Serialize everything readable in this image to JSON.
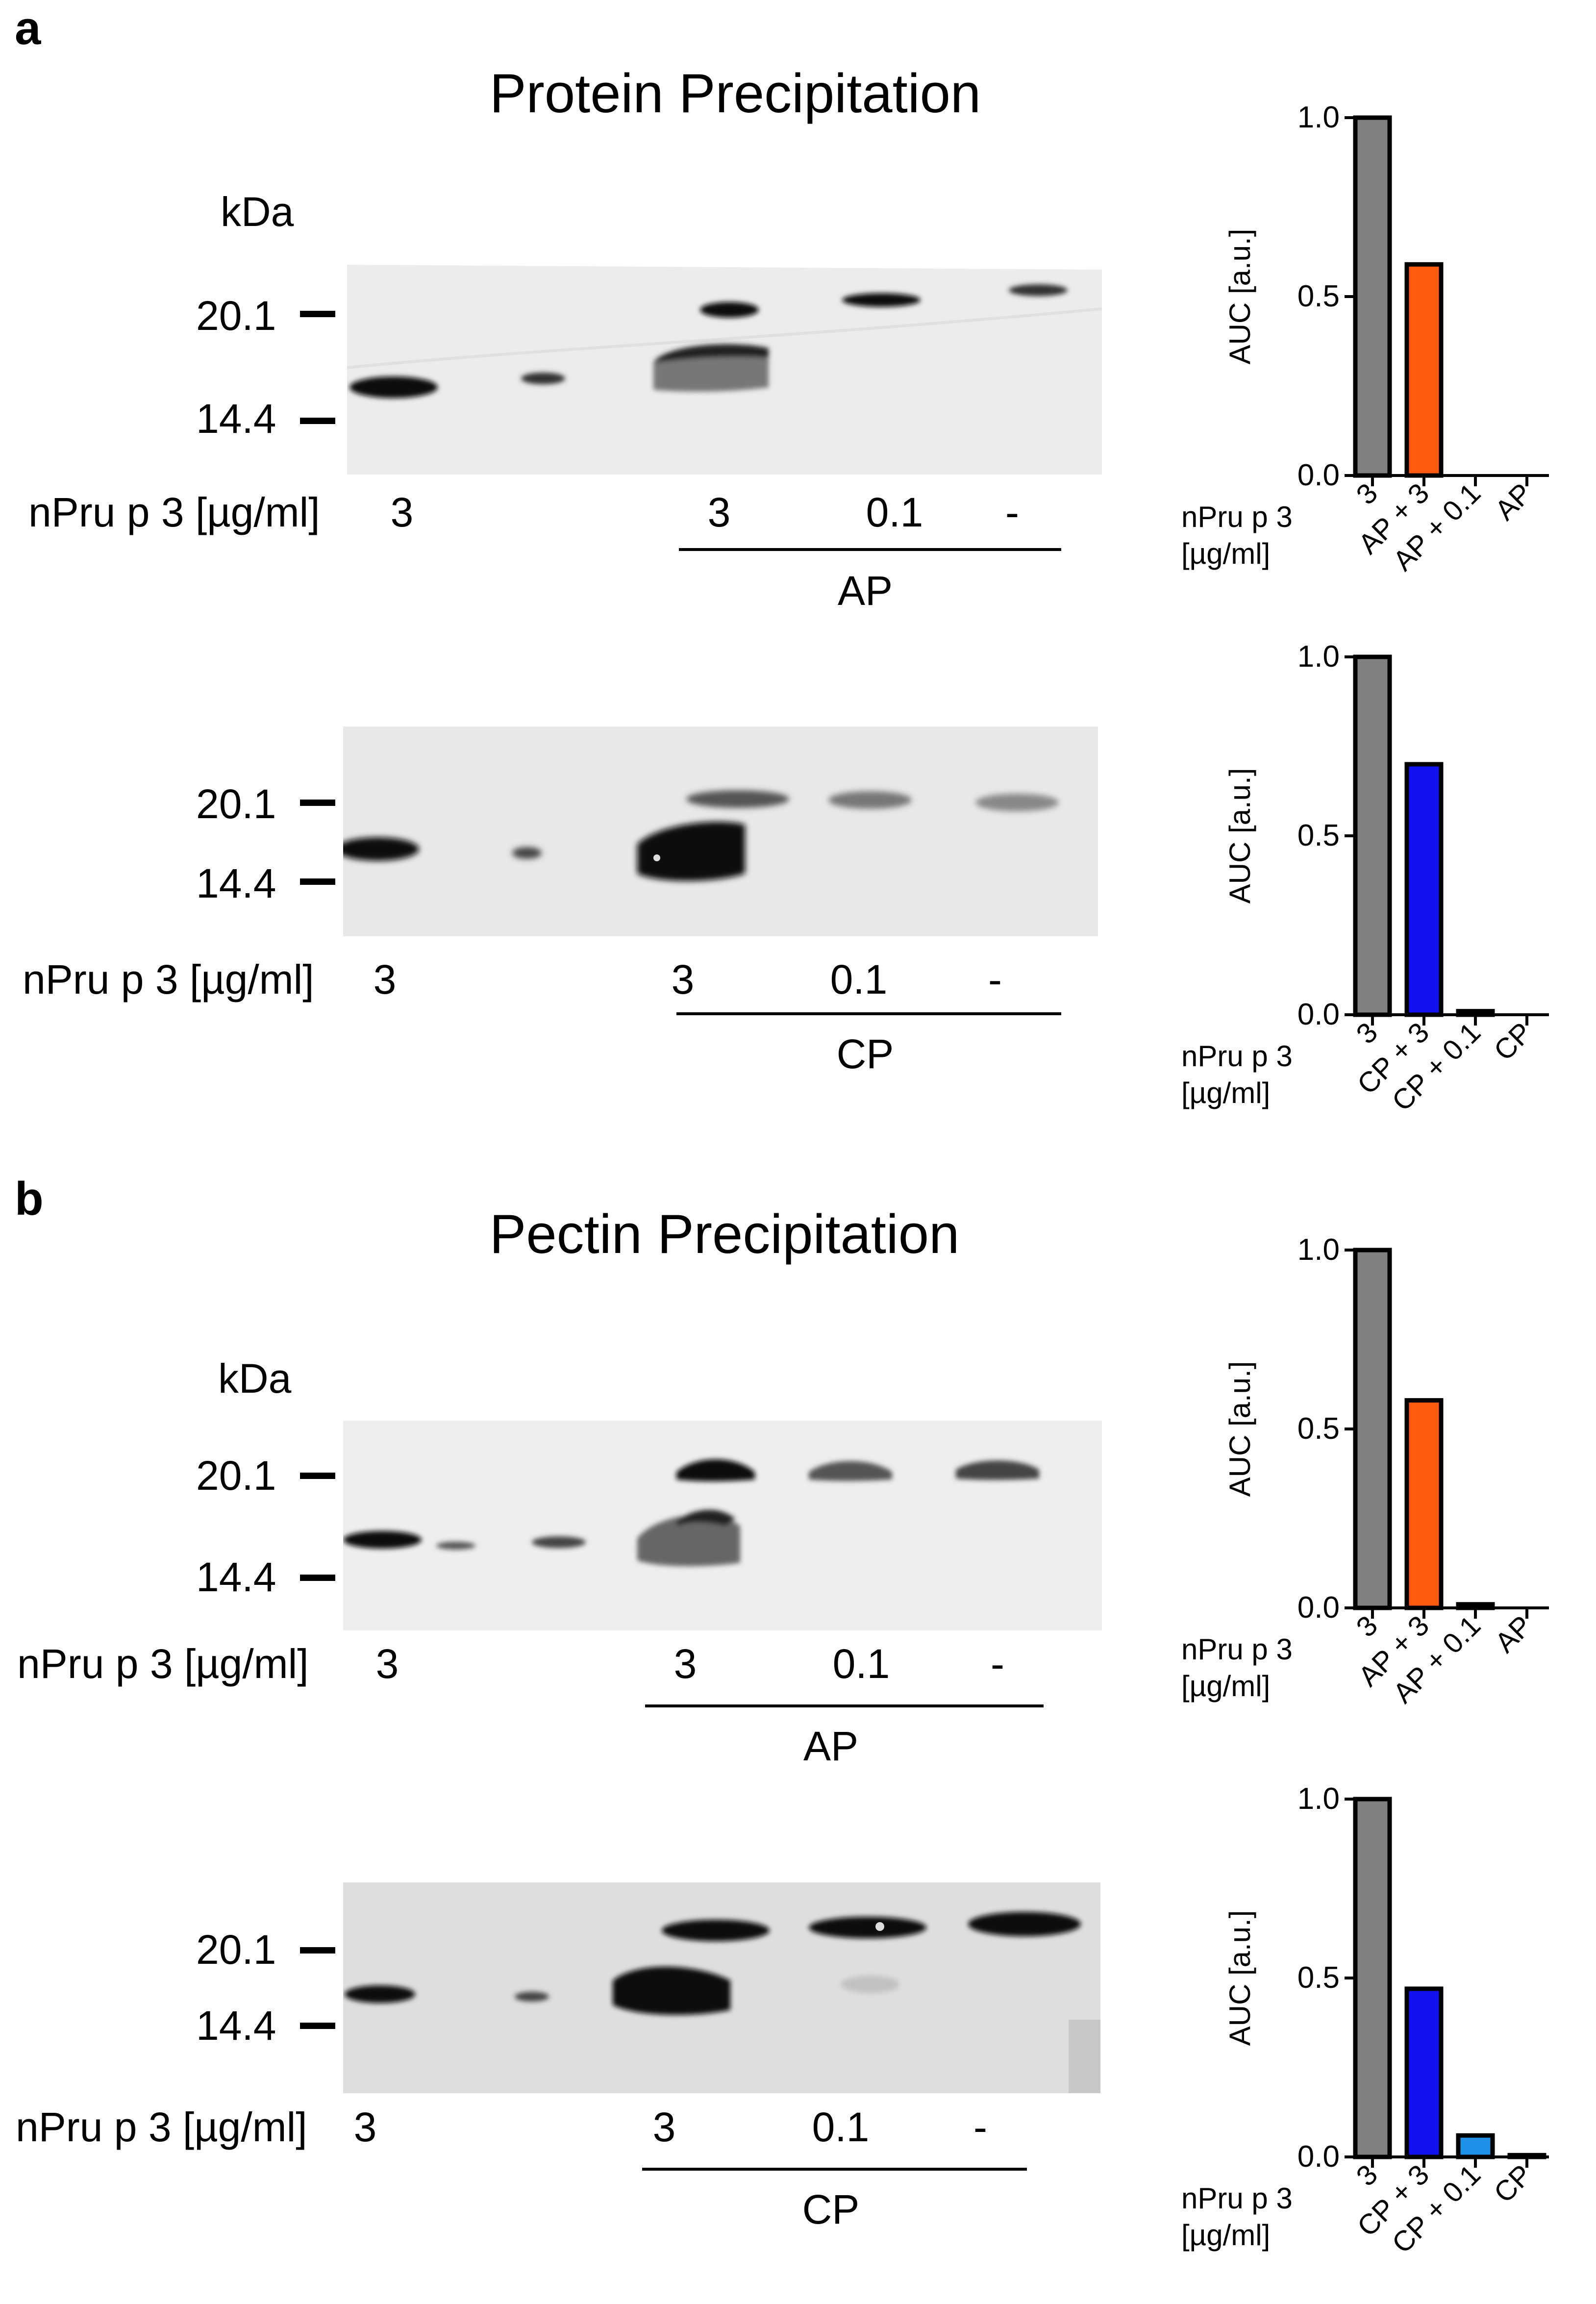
{
  "panels": [
    {
      "letter": "a",
      "title": "Protein Precipitation",
      "kda": "kDa",
      "blots": [
        {
          "mw_high": "20.1",
          "mw_low": "14.4",
          "row_label": "nPru p 3 [µg/ml]",
          "lanes": [
            "3",
            "3",
            "0.1",
            "-"
          ],
          "group": "AP"
        },
        {
          "mw_high": "20.1",
          "mw_low": "14.4",
          "row_label": "nPru p 3 [µg/ml]",
          "lanes": [
            "3",
            "3",
            "0.1",
            "-"
          ],
          "group": "CP"
        }
      ]
    },
    {
      "letter": "b",
      "title": "Pectin Precipitation",
      "kda": "kDa",
      "blots": [
        {
          "mw_high": "20.1",
          "mw_low": "14.4",
          "row_label": "nPru p 3 [µg/ml]",
          "lanes": [
            "3",
            "3",
            "0.1",
            "-"
          ],
          "group": "AP"
        },
        {
          "mw_high": "20.1",
          "mw_low": "14.4",
          "row_label": "nPru p 3 [µg/ml]",
          "lanes": [
            "3",
            "3",
            "0.1",
            "-"
          ],
          "group": "CP"
        }
      ]
    }
  ],
  "colors": {
    "gray": "#808080",
    "orange": "#ff5a10",
    "blue": "#1212f0",
    "lightblue": "#1e90e8"
  },
  "chart_data": [
    {
      "type": "bar",
      "ylabel": "AUC [a.u.]",
      "xlabel_line1": "nPru p 3",
      "xlabel_line2": "[µg/ml]",
      "ylim": [
        0,
        1.0
      ],
      "yticks": [
        "0.0",
        "0.5",
        "1.0"
      ],
      "categories": [
        "3",
        "AP + 3",
        "AP + 0.1",
        "AP"
      ],
      "values": [
        1.0,
        0.59,
        0.0,
        0.0
      ],
      "bar_colors": [
        "#808080",
        "#ff5a10",
        "#808080",
        "#808080"
      ]
    },
    {
      "type": "bar",
      "ylabel": "AUC [a.u.]",
      "xlabel_line1": "nPru p 3",
      "xlabel_line2": "[µg/ml]",
      "ylim": [
        0,
        1.0
      ],
      "yticks": [
        "0.0",
        "0.5",
        "1.0"
      ],
      "categories": [
        "3",
        "CP + 3",
        "CP + 0.1",
        "CP"
      ],
      "values": [
        1.0,
        0.7,
        0.01,
        0.0
      ],
      "bar_colors": [
        "#808080",
        "#1212f0",
        "#808080",
        "#808080"
      ]
    },
    {
      "type": "bar",
      "ylabel": "AUC [a.u.]",
      "xlabel_line1": "nPru p 3",
      "xlabel_line2": "[µg/ml]",
      "ylim": [
        0,
        1.0
      ],
      "yticks": [
        "0.0",
        "0.5",
        "1.0"
      ],
      "categories": [
        "3",
        "AP + 3",
        "AP + 0.1",
        "AP"
      ],
      "values": [
        1.0,
        0.58,
        0.01,
        0.0
      ],
      "bar_colors": [
        "#808080",
        "#ff5a10",
        "#808080",
        "#808080"
      ]
    },
    {
      "type": "bar",
      "ylabel": "AUC [a.u.]",
      "xlabel_line1": "nPru p 3",
      "xlabel_line2": "[µg/ml]",
      "ylim": [
        0,
        1.0
      ],
      "yticks": [
        "0.0",
        "0.5",
        "1.0"
      ],
      "categories": [
        "3",
        "CP + 3",
        "CP + 0.1",
        "CP"
      ],
      "values": [
        1.0,
        0.47,
        0.06,
        0.005
      ],
      "bar_colors": [
        "#808080",
        "#1212f0",
        "#1e90e8",
        "#808080"
      ]
    }
  ]
}
